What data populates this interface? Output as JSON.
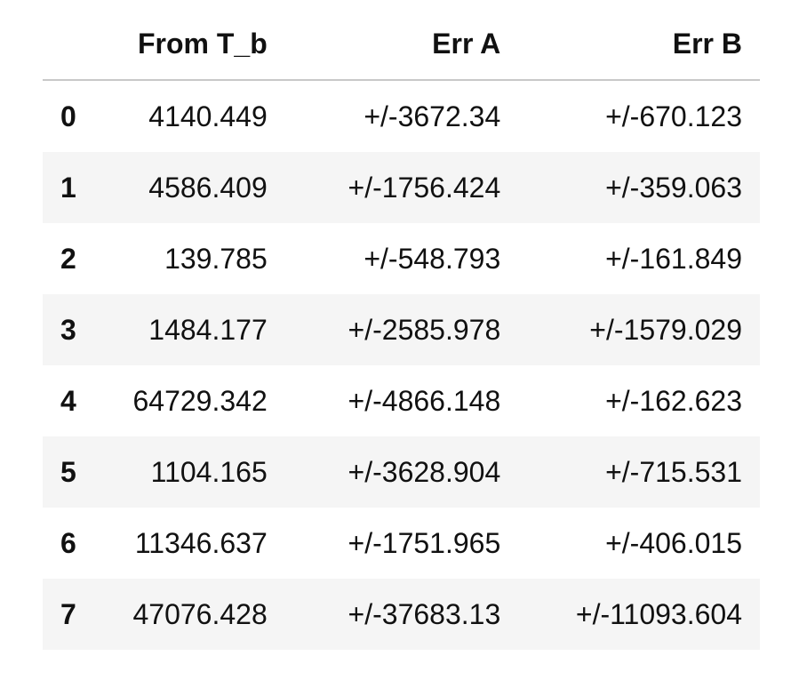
{
  "table": {
    "columns": [
      "From T_b",
      "Err A",
      "Err B"
    ],
    "rows": [
      {
        "index": "0",
        "from_tb": "4140.449",
        "err_a": "+/-3672.34",
        "err_b": "+/-670.123"
      },
      {
        "index": "1",
        "from_tb": "4586.409",
        "err_a": "+/-1756.424",
        "err_b": "+/-359.063"
      },
      {
        "index": "2",
        "from_tb": "139.785",
        "err_a": "+/-548.793",
        "err_b": "+/-161.849"
      },
      {
        "index": "3",
        "from_tb": "1484.177",
        "err_a": "+/-2585.978",
        "err_b": "+/-1579.029"
      },
      {
        "index": "4",
        "from_tb": "64729.342",
        "err_a": "+/-4866.148",
        "err_b": "+/-162.623"
      },
      {
        "index": "5",
        "from_tb": "1104.165",
        "err_a": "+/-3628.904",
        "err_b": "+/-715.531"
      },
      {
        "index": "6",
        "from_tb": "11346.637",
        "err_a": "+/-1751.965",
        "err_b": "+/-406.015"
      },
      {
        "index": "7",
        "from_tb": "47076.428",
        "err_a": "+/-37683.13",
        "err_b": "+/-11093.604"
      }
    ]
  }
}
